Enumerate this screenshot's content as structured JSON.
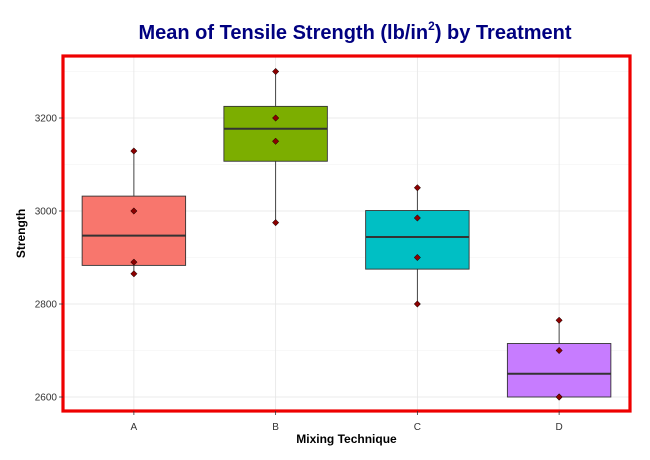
{
  "chart_data": {
    "type": "box",
    "title_main": "Mean of Tensile Strength (lb/in",
    "title_sup": "2",
    "title_end": ") by Treatment",
    "xlabel": "Mixing Technique",
    "ylabel": "Strength",
    "ylim": [
      2565,
      3325
    ],
    "yticks": [
      2600,
      2800,
      3000,
      3200
    ],
    "grid": true,
    "categories": [
      "A",
      "B",
      "C",
      "D"
    ],
    "boxes": [
      {
        "category": "A",
        "q1": 2883,
        "median": 2947,
        "q3": 3032,
        "whisker_low": 2865,
        "whisker_high": 3129,
        "color": "#F8766D",
        "points": [
          3129,
          3000,
          2890,
          2865
        ]
      },
      {
        "category": "B",
        "q1": 3107,
        "median": 3177,
        "q3": 3225,
        "whisker_low": 2975,
        "whisker_high": 3300,
        "color": "#7CAE00",
        "points": [
          3200,
          3300,
          2975,
          3150
        ]
      },
      {
        "category": "C",
        "q1": 2875,
        "median": 2944,
        "q3": 3001,
        "whisker_low": 2800,
        "whisker_high": 3050,
        "color": "#00BFC4",
        "points": [
          2800,
          2900,
          2985,
          3050
        ]
      },
      {
        "category": "D",
        "q1": 2600,
        "median": 2650,
        "q3": 2715,
        "whisker_low": 2600,
        "whisker_high": 2765,
        "color": "#C77CFF",
        "points": [
          2600,
          2700,
          2600,
          2765
        ]
      }
    ],
    "point_color": "#8B0000",
    "border_color": "#EE0000"
  }
}
